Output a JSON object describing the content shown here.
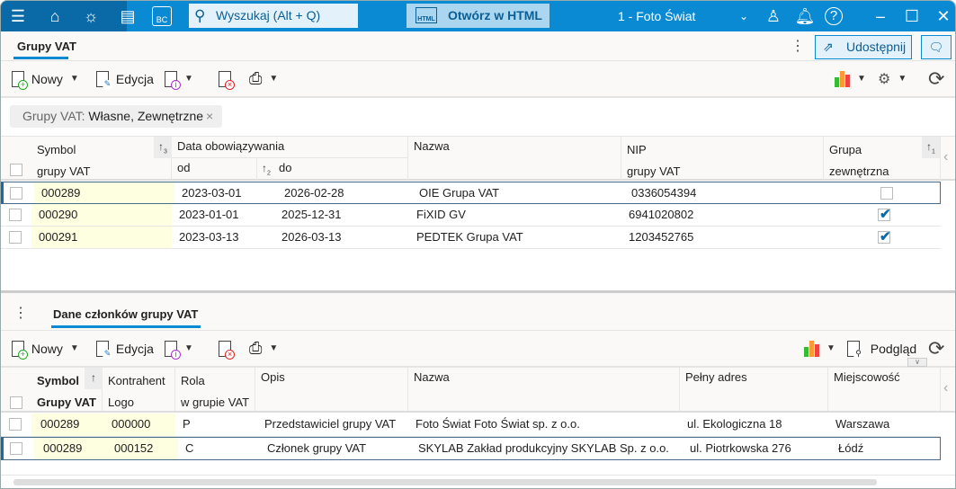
{
  "titlebar": {
    "search_placeholder": "Wyszukaj (Alt + Q)",
    "open_html_label": "Otwórz w HTML",
    "open_html_icon_text": "HTML",
    "company": "1 - Foto Świat",
    "bc_label": "BC"
  },
  "tabs": {
    "main": "Grupy VAT",
    "share_label": "Udostępnij",
    "detail": "Dane członków grupy VAT"
  },
  "toolbar": {
    "new_label": "Nowy",
    "edit_label": "Edycja",
    "preview_label": "Podgląd"
  },
  "filter": {
    "label": "Grupy VAT:",
    "value": "Własne, Zewnętrzne"
  },
  "grid1": {
    "headers": {
      "symbol": "Symbol",
      "symbol2": "grupy VAT",
      "date": "Data obowiązywania",
      "from": "od",
      "to": "do",
      "name": "Nazwa",
      "nip": "NIP",
      "nip2": "grupy VAT",
      "group": "Grupa",
      "group2": "zewnętrzna"
    },
    "sort_indices": {
      "symbol": "3",
      "to": "2",
      "group": "1"
    },
    "rows": [
      {
        "symbol": "000289",
        "from": "2023-03-01",
        "to": "2026-02-28",
        "name": "OIE Grupa VAT",
        "nip": "0336054394",
        "external": false,
        "selected": true
      },
      {
        "symbol": "000290",
        "from": "2023-01-01",
        "to": "2025-12-31",
        "name": "FiXID GV",
        "nip": "6941020802",
        "external": true,
        "selected": false
      },
      {
        "symbol": "000291",
        "from": "2023-03-13",
        "to": "2026-03-13",
        "name": "PEDTEK Grupa VAT",
        "nip": "1203452765",
        "external": true,
        "selected": false
      }
    ]
  },
  "grid2": {
    "headers": {
      "symbol": "Symbol",
      "symbol2": "Grupy VAT",
      "contractor": "Kontrahent",
      "contractor2": "Logo",
      "role": "Rola",
      "role2": "w grupie VAT",
      "desc": "Opis",
      "name": "Nazwa",
      "address": "Pełny adres",
      "city": "Miejscowość"
    },
    "rows": [
      {
        "symbol": "000289",
        "contractor": "000000",
        "role": "P",
        "desc": "Przedstawiciel grupy VAT",
        "name": "Foto Świat Foto Świat sp. z o.o.",
        "address": "ul. Ekologiczna 18",
        "city": "Warszawa",
        "selected": false
      },
      {
        "symbol": "000289",
        "contractor": "000152",
        "role": "C",
        "desc": "Członek grupy VAT",
        "name": "SKYLAB Zakład produkcyjny SKYLAB Sp. z o.o.",
        "address": "ul. Piotrkowska 276",
        "city": "Łódź",
        "selected": true
      }
    ]
  },
  "colors": {
    "titlebar": "#0a8ad2",
    "accent": "#0a8ad2",
    "key_column": "#fefee0"
  }
}
